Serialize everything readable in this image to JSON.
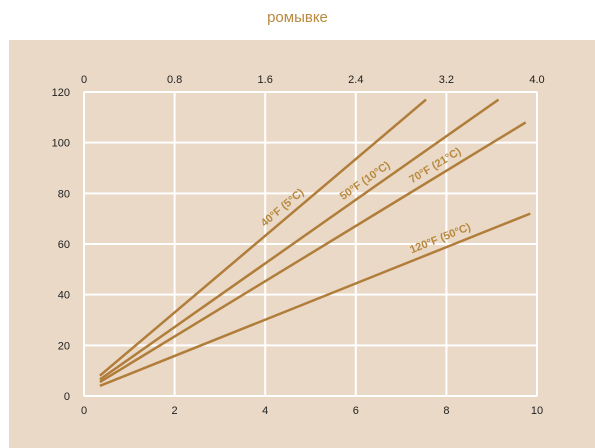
{
  "header": {
    "caption_fragment": "ромывке"
  },
  "chart_data": {
    "type": "line",
    "title": "",
    "xlabel": "",
    "ylabel": "",
    "xlim": [
      0,
      10
    ],
    "ylim": [
      0,
      120
    ],
    "x_ticks": [
      "0",
      "2",
      "4",
      "6",
      "8",
      "10"
    ],
    "x_top_ticks": [
      "0",
      "0.8",
      "1.6",
      "2.4",
      "3.2",
      "4.0"
    ],
    "y_ticks": [
      "0",
      "20",
      "40",
      "60",
      "80",
      "100",
      "120"
    ],
    "grid": true,
    "line_color": "#b07d3a",
    "grid_color": "#ffffff",
    "series": [
      {
        "name": "40°F (5°C)",
        "x": [
          0.35,
          7.55
        ],
        "y": [
          8,
          117
        ]
      },
      {
        "name": "50°F (10°C)",
        "x": [
          0.35,
          9.15
        ],
        "y": [
          6.5,
          117
        ]
      },
      {
        "name": "70°F (21°C)",
        "x": [
          0.35,
          9.75
        ],
        "y": [
          5.5,
          108
        ]
      },
      {
        "name": "120°F (50°C)",
        "x": [
          0.35,
          9.85
        ],
        "y": [
          4,
          72
        ]
      }
    ]
  }
}
